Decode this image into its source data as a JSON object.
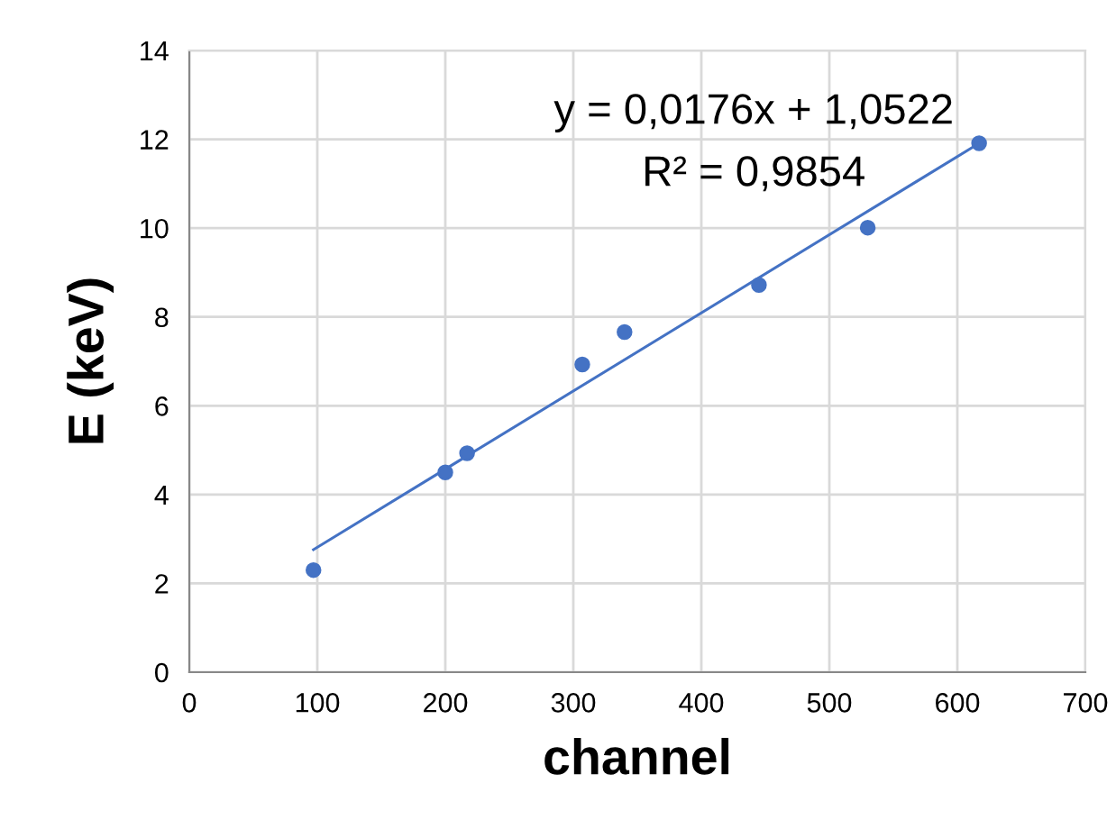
{
  "chart_data": {
    "type": "scatter",
    "xlabel": "channel",
    "ylabel": "E (keV)",
    "xlim": [
      0,
      700
    ],
    "xticks": [
      0,
      100,
      200,
      300,
      400,
      500,
      600,
      700
    ],
    "ylim": [
      0,
      14
    ],
    "yticks": [
      0,
      2,
      4,
      6,
      8,
      10,
      12,
      14
    ],
    "grid": true,
    "series": [
      {
        "marker": "circle",
        "color": "#4472c4",
        "x": [
          97,
          200,
          217,
          307,
          340,
          445,
          530,
          617
        ],
        "values": [
          2.3,
          4.5,
          4.93,
          6.93,
          7.66,
          8.72,
          10.01,
          11.91
        ]
      },
      {
        "type": "line",
        "color": "#4472c4",
        "x": [
          97,
          617
        ],
        "values": [
          2.76,
          11.91
        ],
        "line_style": "solid",
        "marker": "none"
      }
    ],
    "annotations": [
      "y = 0,0176x + 1,0522",
      "R² = 0,9854"
    ]
  }
}
